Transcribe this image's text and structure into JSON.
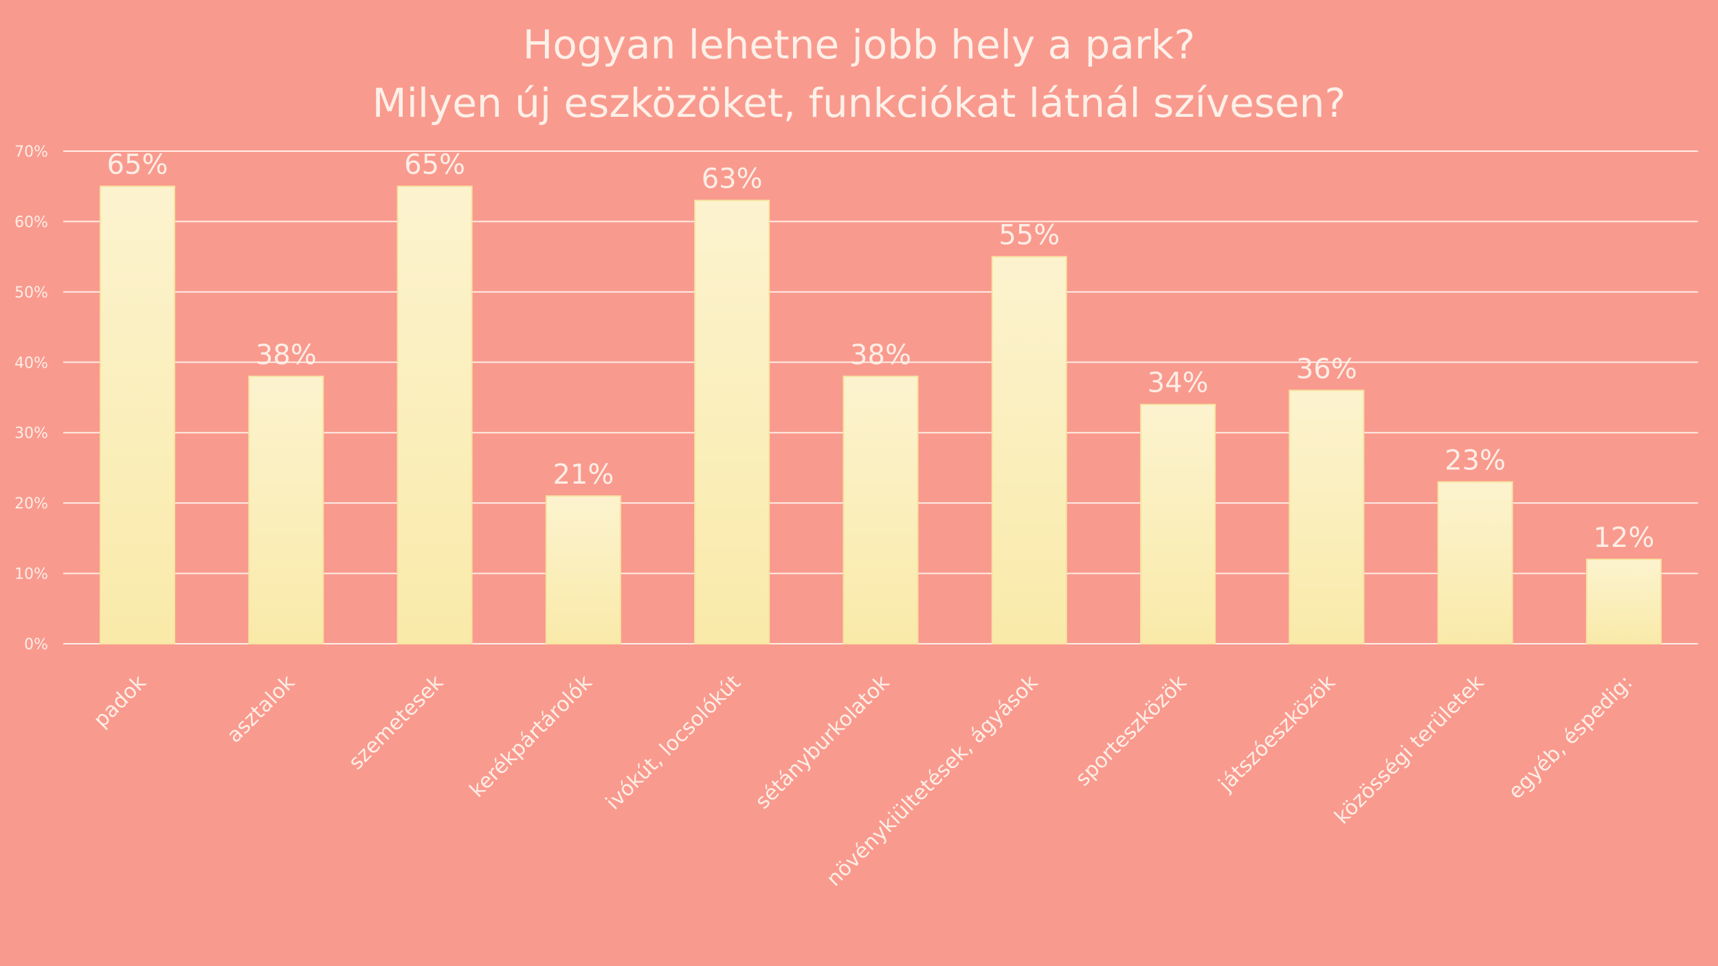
{
  "chart_data": {
    "type": "bar",
    "title": [
      "Hogyan lehetne jobb hely a park?",
      "Milyen új eszközöket, funkciókat látnál szívesen?"
    ],
    "xlabel": "",
    "ylabel": "",
    "categories": [
      "padok",
      "asztalok",
      "szemetesek",
      "kerékpártárolók",
      "ivókút, locsolókút",
      "sétányburkolatok",
      "növénykiültetések, ágyások",
      "sporteszközök",
      "játszóeszközök",
      "közösségi területek",
      "egyéb, éspedig:"
    ],
    "values": [
      65,
      38,
      65,
      21,
      63,
      38,
      55,
      34,
      36,
      23,
      12
    ],
    "data_labels": [
      "65%",
      "38%",
      "65%",
      "21%",
      "63%",
      "38%",
      "55%",
      "34%",
      "36%",
      "23%",
      "12%"
    ],
    "ylim": [
      0,
      70
    ],
    "yticks": [
      "0%",
      "10%",
      "20%",
      "30%",
      "40%",
      "50%",
      "60%",
      "70%"
    ],
    "grid": true,
    "legend": "none",
    "colors": {
      "background": "#f99a8e",
      "bar_top": "#fcf3cf",
      "bar_bottom": "#f9eaa9",
      "text": "#fdeee6",
      "grid": "#fdeee6"
    }
  }
}
